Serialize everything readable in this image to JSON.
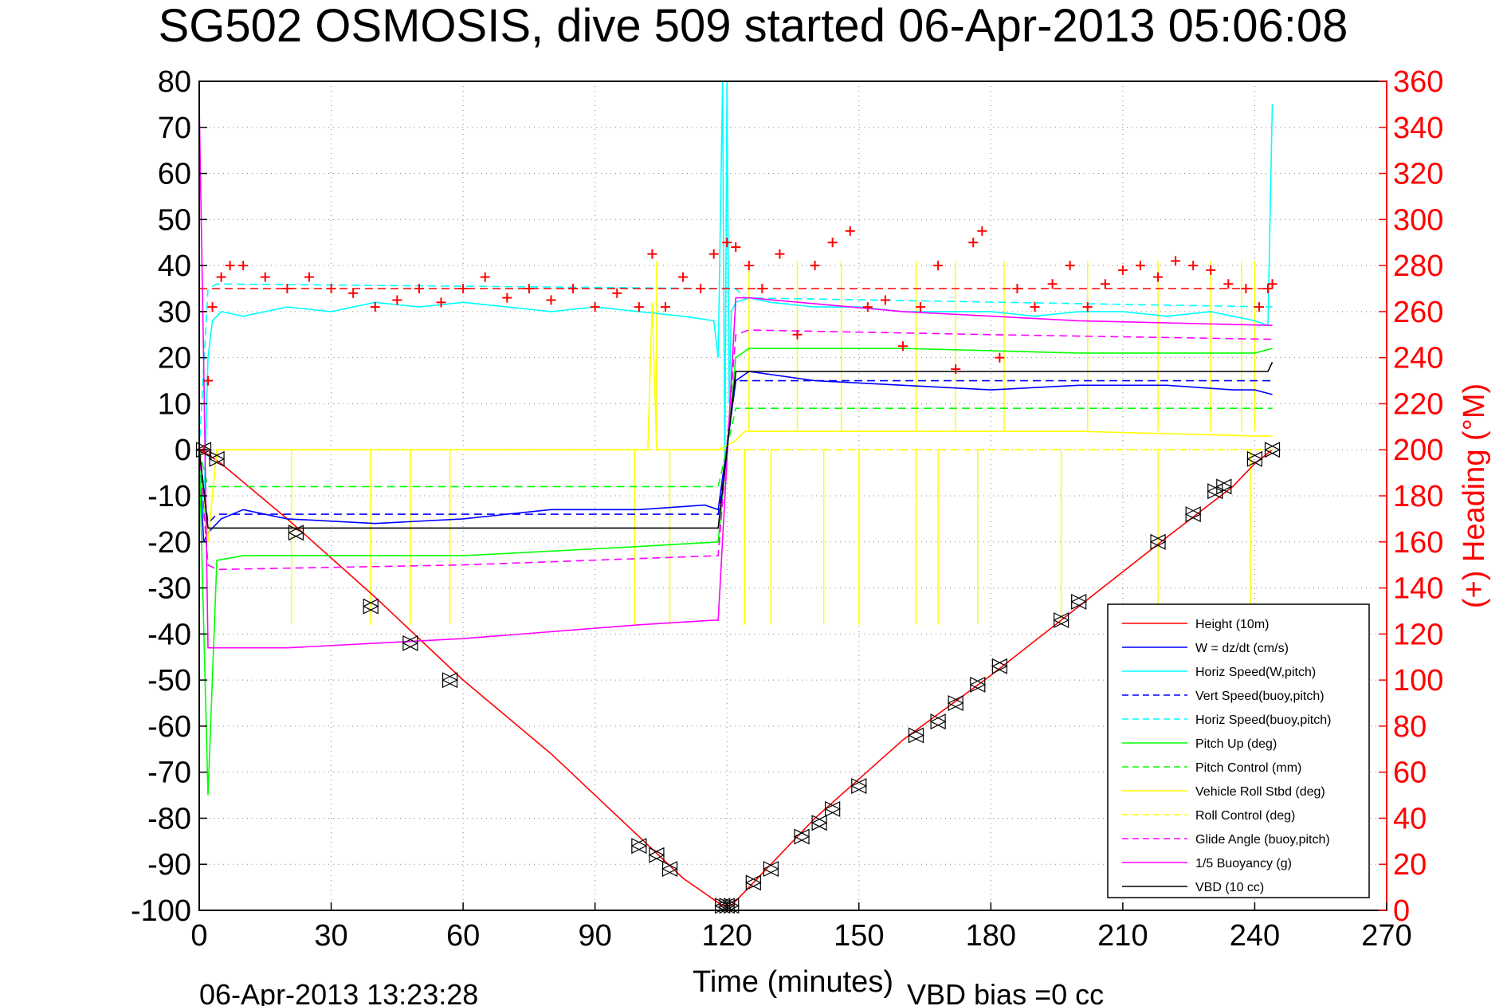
{
  "chart_data": {
    "type": "line",
    "title": "SG502 OSMOSIS, dive 509 started 06-Apr-2013 05:06:08",
    "xlabel": "Time (minutes)",
    "ylabel": "",
    "y2label": "(+) Heading (°M)",
    "xlim": [
      0,
      270
    ],
    "ylim": [
      -100,
      80
    ],
    "y2lim": [
      0,
      360
    ],
    "xticks": [
      "0",
      "30",
      "60",
      "90",
      "120",
      "150",
      "180",
      "210",
      "240",
      "270"
    ],
    "yticks": [
      "80",
      "70",
      "60",
      "50",
      "40",
      "30",
      "20",
      "10",
      "0",
      "-10",
      "-20",
      "-30",
      "-40",
      "-50",
      "-60",
      "-70",
      "-80",
      "-90",
      "-100"
    ],
    "y2ticks": [
      "360",
      "340",
      "320",
      "300",
      "280",
      "260",
      "240",
      "220",
      "200",
      "180",
      "160",
      "140",
      "120",
      "100",
      "80",
      "60",
      "40",
      "20",
      "0"
    ],
    "grid": true,
    "legend_position": "bottom-right",
    "footer_timestamp": "06-Apr-2013 13:23:28",
    "footer_vbd": "VBD bias =0 cc",
    "legend": [
      {
        "name": "Height (10m)",
        "color": "#ff0000",
        "style": "solid"
      },
      {
        "name": "W = dz/dt (cm/s)",
        "color": "#0000ff",
        "style": "solid"
      },
      {
        "name": "Horiz Speed(W,pitch)",
        "color": "#00ffff",
        "style": "solid"
      },
      {
        "name": "Vert Speed(buoy,pitch)",
        "color": "#0000ff",
        "style": "dashed"
      },
      {
        "name": "Horiz Speed(buoy,pitch)",
        "color": "#00ffff",
        "style": "dashed"
      },
      {
        "name": "Pitch Up (deg)",
        "color": "#00ff00",
        "style": "solid"
      },
      {
        "name": "Pitch Control (mm)",
        "color": "#00ff00",
        "style": "dashed"
      },
      {
        "name": "Vehicle Roll Stbd (deg)",
        "color": "#ffff00",
        "style": "solid"
      },
      {
        "name": "Roll Control (deg)",
        "color": "#ffff00",
        "style": "dashed"
      },
      {
        "name": "Glide Angle (buoy,pitch)",
        "color": "#ff00ff",
        "style": "dashed"
      },
      {
        "name": "1/5 Buoyancy (g)",
        "color": "#ff00ff",
        "style": "solid"
      },
      {
        "name": "VBD (10 cc)",
        "color": "#000000",
        "style": "solid"
      }
    ],
    "series": [
      {
        "key": "height",
        "color": "#ff0000",
        "dash": "",
        "axis": "left",
        "x": [
          0,
          2,
          5,
          20,
          40,
          60,
          80,
          100,
          110,
          119,
          121,
          125,
          140,
          160,
          180,
          200,
          220,
          235,
          240,
          244
        ],
        "y": [
          0,
          -1,
          -3,
          -15,
          -32,
          -50,
          -66,
          -84,
          -93,
          -99,
          -99,
          -95,
          -80,
          -63,
          -49,
          -34,
          -19,
          -8,
          -3,
          0
        ]
      },
      {
        "key": "w",
        "color": "#0000ff",
        "dash": "",
        "axis": "left",
        "x": [
          0,
          1,
          2,
          3,
          5,
          10,
          20,
          40,
          60,
          80,
          100,
          115,
          118,
          122,
          125,
          140,
          160,
          180,
          200,
          220,
          235,
          240,
          244
        ],
        "y": [
          0,
          -20,
          -18,
          -17,
          -15,
          -13,
          -15,
          -16,
          -15,
          -13,
          -13,
          -12,
          -13,
          15,
          17,
          15,
          14,
          13,
          14,
          14,
          13,
          13,
          12
        ]
      },
      {
        "key": "horiz_w",
        "color": "#00ffff",
        "dash": "",
        "axis": "left",
        "x": [
          0,
          1,
          2,
          3,
          5,
          10,
          20,
          30,
          40,
          50,
          60,
          70,
          80,
          90,
          100,
          110,
          117,
          118,
          119,
          119.5,
          120,
          120.5,
          121,
          122,
          125,
          130,
          140,
          150,
          160,
          170,
          180,
          190,
          200,
          210,
          220,
          230,
          240,
          243,
          244
        ],
        "y": [
          0,
          -15,
          20,
          28,
          30,
          29,
          31,
          30,
          32,
          31,
          32,
          31,
          30,
          31,
          30,
          29,
          28,
          20,
          80,
          -5,
          80,
          10,
          30,
          32,
          33,
          32,
          31,
          31,
          30,
          30,
          30,
          29,
          30,
          30,
          29,
          30,
          28,
          27,
          75
        ]
      },
      {
        "key": "vert_buoy",
        "color": "#0000ff",
        "dash": "10,6",
        "axis": "left",
        "x": [
          0,
          2,
          4,
          115,
          118,
          122,
          124,
          244
        ],
        "y": [
          0,
          -16,
          -14,
          -14,
          -14,
          15,
          15,
          15
        ]
      },
      {
        "key": "horiz_buoy",
        "color": "#00ffff",
        "dash": "10,6",
        "axis": "left",
        "x": [
          0,
          2,
          4,
          118,
          122,
          124,
          244
        ],
        "y": [
          0,
          35,
          36,
          35,
          35,
          33,
          31
        ]
      },
      {
        "key": "pitch_up",
        "color": "#00ff00",
        "dash": "",
        "axis": "left",
        "x": [
          0,
          2,
          4,
          10,
          60,
          100,
          118,
          122,
          125,
          160,
          200,
          240,
          244
        ],
        "y": [
          0,
          -75,
          -24,
          -23,
          -23,
          -21,
          -20,
          20,
          22,
          22,
          21,
          21,
          22
        ]
      },
      {
        "key": "pitch_control",
        "color": "#00ff00",
        "dash": "10,6",
        "axis": "left",
        "x": [
          0,
          2,
          4,
          118,
          122,
          124,
          244
        ],
        "y": [
          0,
          -8,
          -8,
          -8,
          9,
          9,
          9
        ]
      },
      {
        "key": "roll_stbd",
        "color": "#ffff00",
        "dash": "",
        "axis": "left",
        "x": [
          0,
          2,
          4,
          100,
          102,
          103,
          104,
          106,
          118,
          122,
          124,
          160,
          200,
          240,
          244
        ],
        "y": [
          0,
          -20,
          0,
          0,
          0,
          32,
          0,
          0,
          0,
          2,
          4,
          4,
          4,
          3,
          3
        ]
      },
      {
        "key": "roll_control",
        "color": "#ffff00",
        "dash": "10,6",
        "axis": "left",
        "x": [
          0,
          2,
          4,
          118,
          122,
          124,
          244
        ],
        "y": [
          0,
          -20,
          0,
          0,
          0,
          0,
          0
        ]
      },
      {
        "key": "glide_angle",
        "color": "#ff00ff",
        "dash": "10,6",
        "axis": "left",
        "x": [
          0,
          2,
          4,
          60,
          118,
          122,
          125,
          180,
          244
        ],
        "y": [
          0,
          -25,
          -26,
          -25,
          -23,
          25,
          26,
          25,
          24
        ]
      },
      {
        "key": "buoyancy",
        "color": "#ff00ff",
        "dash": "",
        "axis": "left",
        "x": [
          0,
          1,
          2,
          4,
          20,
          60,
          100,
          117,
          118,
          122,
          125,
          160,
          200,
          244
        ],
        "y": [
          75,
          20,
          -43,
          -43,
          -43,
          -41,
          -38,
          -37,
          -37,
          33,
          33,
          30,
          28,
          27
        ]
      },
      {
        "key": "vbd",
        "color": "#000000",
        "dash": "",
        "axis": "left",
        "x": [
          0,
          2,
          4,
          117,
          118,
          122,
          125,
          243,
          244
        ],
        "y": [
          0,
          -17,
          -17,
          -17,
          -17,
          17,
          17,
          17,
          19
        ]
      },
      {
        "key": "heading_ref",
        "color": "#ff0000",
        "dash": "10,6",
        "axis": "right",
        "x": [
          0,
          244
        ],
        "y": [
          270,
          270
        ]
      }
    ],
    "roll_spikes": {
      "color": "#ffff00",
      "down_x": [
        21,
        39,
        48,
        57,
        99,
        107,
        124,
        130,
        142,
        150,
        163,
        168,
        177,
        196,
        218,
        239
      ],
      "down_y": -38,
      "up_x": [
        104,
        125,
        136,
        146,
        163,
        172,
        183,
        202,
        218,
        230,
        237,
        240
      ],
      "up_y": 41
    },
    "heading_points": {
      "color": "#ff0000",
      "t": [
        1,
        2,
        3,
        5,
        7,
        10,
        15,
        20,
        25,
        30,
        35,
        40,
        45,
        50,
        55,
        60,
        65,
        70,
        75,
        80,
        85,
        90,
        95,
        100,
        103,
        106,
        110,
        114,
        117,
        120,
        122,
        125,
        128,
        132,
        136,
        140,
        144,
        148,
        152,
        156,
        160,
        164,
        168,
        172,
        176,
        178,
        182,
        186,
        190,
        194,
        198,
        202,
        206,
        210,
        214,
        218,
        222,
        226,
        230,
        234,
        238,
        241,
        243,
        244
      ],
      "h": [
        200,
        230,
        262,
        275,
        280,
        280,
        275,
        270,
        275,
        270,
        268,
        262,
        265,
        270,
        264,
        270,
        275,
        266,
        270,
        265,
        270,
        262,
        268,
        262,
        285,
        262,
        275,
        270,
        285,
        290,
        288,
        280,
        270,
        285,
        250,
        280,
        290,
        295,
        262,
        265,
        245,
        262,
        280,
        235,
        290,
        295,
        240,
        270,
        262,
        272,
        280,
        262,
        272,
        278,
        280,
        275,
        282,
        280,
        278,
        272,
        270,
        262,
        270,
        272
      ]
    },
    "triangle_points": {
      "color": "#000000",
      "t": [
        1,
        4,
        22,
        39,
        48,
        57,
        100,
        104,
        107,
        119,
        120,
        121,
        126,
        130,
        137,
        141,
        144,
        150,
        163,
        168,
        172,
        177,
        182,
        196,
        200,
        218,
        226,
        231,
        233,
        240,
        244
      ],
      "h": [
        0,
        -2,
        -18,
        -34,
        -42,
        -50,
        -86,
        -88,
        -91,
        -99,
        -99,
        -99,
        -94,
        -91,
        -84,
        -81,
        -78,
        -73,
        -62,
        -59,
        -55,
        -51,
        -47,
        -37,
        -33,
        -20,
        -14,
        -9,
        -8,
        -2,
        0
      ]
    }
  }
}
